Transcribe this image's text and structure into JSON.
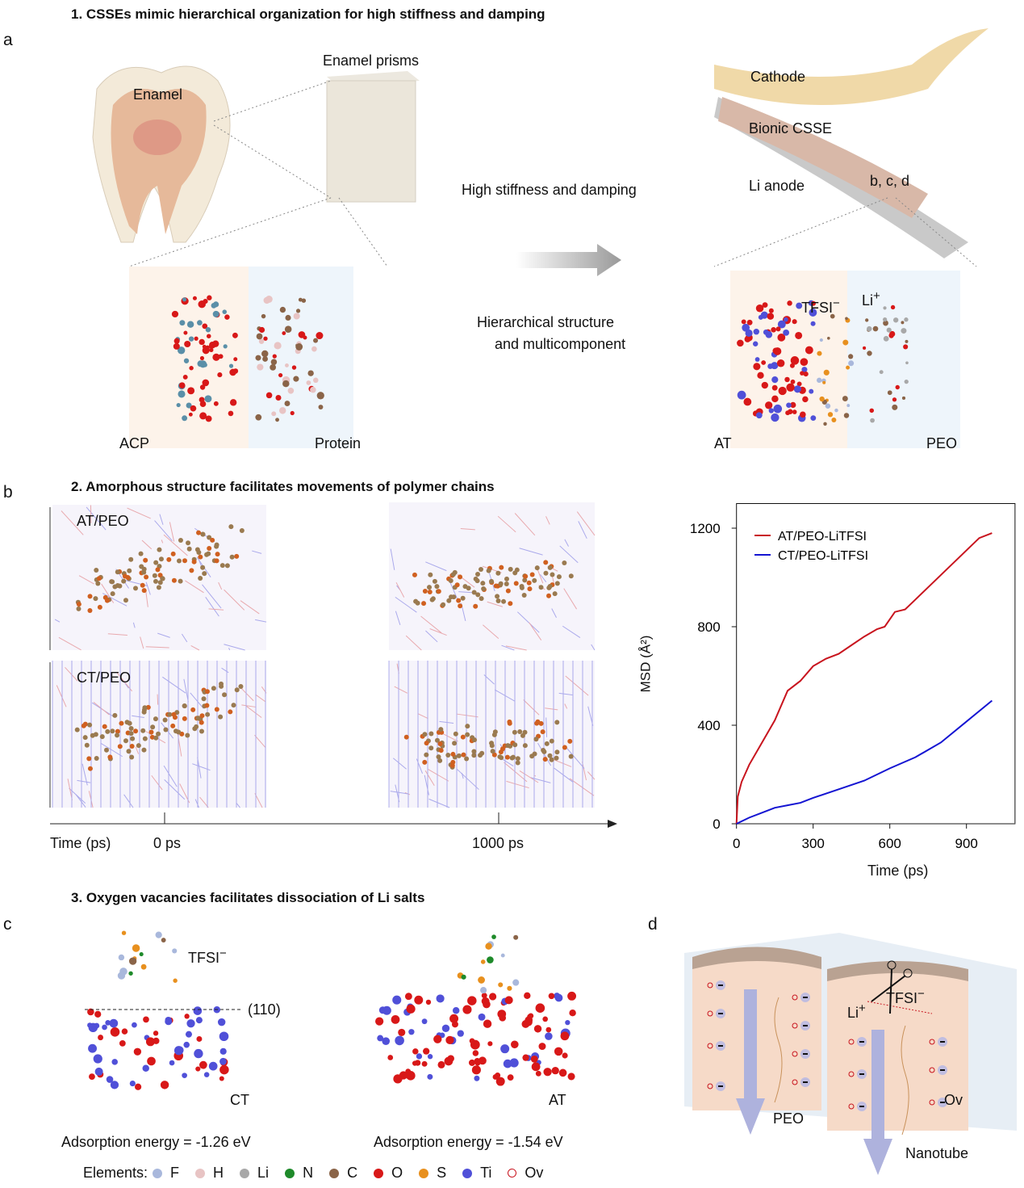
{
  "panel_a": {
    "letter": "a",
    "heading": "1. CSSEs mimic hierarchical organization for high stiffness and damping",
    "labels": {
      "enamel": "Enamel",
      "prisms": "Enamel prisms",
      "arrow_text": "High stiffness and damping",
      "cathode": "Cathode",
      "csse": "Bionic CSSE",
      "anode": "Li anode",
      "ref": "b, c, d",
      "hier1": "Hierarchical structure",
      "hier2": "and multicomponent",
      "acp": "ACP",
      "protein": "Protein",
      "at": "AT",
      "peo": "PEO",
      "tfsi": "TFSI",
      "tfsi_sup": "−",
      "li": "Li",
      "li_sup": "+"
    }
  },
  "panel_b": {
    "letter": "b",
    "heading": "2. Amorphous structure facilitates movements of polymer chains",
    "labels": {
      "at_peo": "AT/PEO",
      "ct_peo": "CT/PEO",
      "time": "Time (ps)",
      "t0": "0 ps",
      "t1": "1000 ps"
    }
  },
  "chart_data": {
    "type": "line",
    "xlabel": "Time (ps)",
    "ylabel": "MSD (Å²)",
    "xlim": [
      0,
      1090
    ],
    "ylim": [
      0,
      1300
    ],
    "xticks": [
      0,
      300,
      600,
      900
    ],
    "yticks": [
      0,
      400,
      800,
      1200
    ],
    "legend_position": "top-left",
    "grid": false,
    "series": [
      {
        "name": "AT/PEO-LiTFSI",
        "color": "#c8141e",
        "x": [
          0,
          5,
          20,
          50,
          100,
          150,
          200,
          250,
          300,
          350,
          400,
          450,
          500,
          550,
          580,
          620,
          660,
          700,
          750,
          800,
          850,
          900,
          950,
          1000
        ],
        "y": [
          0,
          110,
          170,
          240,
          330,
          420,
          540,
          580,
          640,
          670,
          690,
          725,
          760,
          790,
          800,
          860,
          870,
          910,
          960,
          1010,
          1060,
          1110,
          1160,
          1180
        ]
      },
      {
        "name": "CT/PEO-LiTFSI",
        "color": "#1414d2",
        "x": [
          0,
          50,
          100,
          150,
          200,
          250,
          300,
          400,
          500,
          550,
          600,
          700,
          800,
          900,
          1000
        ],
        "y": [
          0,
          25,
          45,
          65,
          75,
          85,
          105,
          140,
          175,
          200,
          225,
          270,
          330,
          415,
          500
        ]
      }
    ]
  },
  "panel_c": {
    "letter": "c",
    "heading": "3. Oxygen vacancies facilitates dissociation of Li salts",
    "labels": {
      "tfsi": "TFSI",
      "tfsi_sup": "−",
      "plane": "(110)",
      "ct": "CT",
      "at": "AT",
      "e_ct": "Adsorption energy = -1.26 eV",
      "e_at": "Adsorption energy = -1.54 eV",
      "elements": "Elements:"
    },
    "elements": [
      {
        "sym": "F",
        "color": "#a9b8dc"
      },
      {
        "sym": "H",
        "color": "#e8c4c4"
      },
      {
        "sym": "Li",
        "color": "#a8a8a8"
      },
      {
        "sym": "N",
        "color": "#1e8a2a"
      },
      {
        "sym": "C",
        "color": "#8a6448"
      },
      {
        "sym": "O",
        "color": "#d81818"
      },
      {
        "sym": "S",
        "color": "#e8901e"
      },
      {
        "sym": "Ti",
        "color": "#5050d8"
      },
      {
        "sym": "Ov",
        "color": "ring"
      }
    ]
  },
  "panel_d": {
    "letter": "d",
    "labels": {
      "li": "Li",
      "li_sup": "+",
      "tfsi": "TFSI",
      "tfsi_sup": "−",
      "peo": "PEO",
      "ov": "Ov",
      "nanotube": "Nanotube"
    }
  }
}
